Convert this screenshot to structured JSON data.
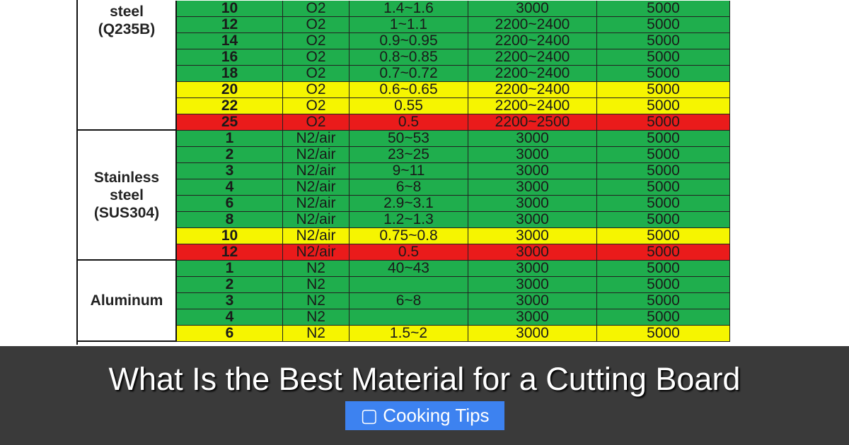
{
  "colors": {
    "green": "#1fae4d",
    "yellow": "#f6f500",
    "red": "#ea1b1b"
  },
  "groups": [
    {
      "label": "steel\n(Q235B)",
      "rows": [
        [
          "10",
          "O2",
          "1.4~1.6",
          "3000",
          "5000",
          "green"
        ],
        [
          "12",
          "O2",
          "1~1.1",
          "2200~2400",
          "5000",
          "green"
        ],
        [
          "14",
          "O2",
          "0.9~0.95",
          "2200~2400",
          "5000",
          "green"
        ],
        [
          "16",
          "O2",
          "0.8~0.85",
          "2200~2400",
          "5000",
          "green"
        ],
        [
          "18",
          "O2",
          "0.7~0.72",
          "2200~2400",
          "5000",
          "green"
        ],
        [
          "20",
          "O2",
          "0.6~0.65",
          "2200~2400",
          "5000",
          "yellow"
        ],
        [
          "22",
          "O2",
          "0.55",
          "2200~2400",
          "5000",
          "yellow"
        ],
        [
          "25",
          "O2",
          "0.5",
          "2200~2500",
          "5000",
          "red"
        ]
      ]
    },
    {
      "label": "Stainless\nsteel\n(SUS304)",
      "rows": [
        [
          "1",
          "N2/air",
          "50~53",
          "3000",
          "5000",
          "green"
        ],
        [
          "2",
          "N2/air",
          "23~25",
          "3000",
          "5000",
          "green"
        ],
        [
          "3",
          "N2/air",
          "9~11",
          "3000",
          "5000",
          "green"
        ],
        [
          "4",
          "N2/air",
          "6~8",
          "3000",
          "5000",
          "green"
        ],
        [
          "6",
          "N2/air",
          "2.9~3.1",
          "3000",
          "5000",
          "green"
        ],
        [
          "8",
          "N2/air",
          "1.2~1.3",
          "3000",
          "5000",
          "green"
        ],
        [
          "10",
          "N2/air",
          "0.75~0.8",
          "3000",
          "5000",
          "yellow"
        ],
        [
          "12",
          "N2/air",
          "0.5",
          "3000",
          "5000",
          "red"
        ]
      ]
    },
    {
      "label": "Aluminum",
      "rows": [
        [
          "1",
          "N2",
          "40~43",
          "3000",
          "5000",
          "green"
        ],
        [
          "2",
          "N2",
          "",
          "3000",
          "5000",
          "green"
        ],
        [
          "3",
          "N2",
          "6~8",
          "3000",
          "5000",
          "green"
        ],
        [
          "4",
          "N2",
          "",
          "3000",
          "5000",
          "green"
        ],
        [
          "6",
          "N2",
          "1.5~2",
          "3000",
          "5000",
          "yellow"
        ]
      ]
    }
  ],
  "overlay": {
    "title": "What Is the Best Material for a Cutting Board",
    "category_icon": "folder-icon",
    "category": "Cooking Tips"
  }
}
